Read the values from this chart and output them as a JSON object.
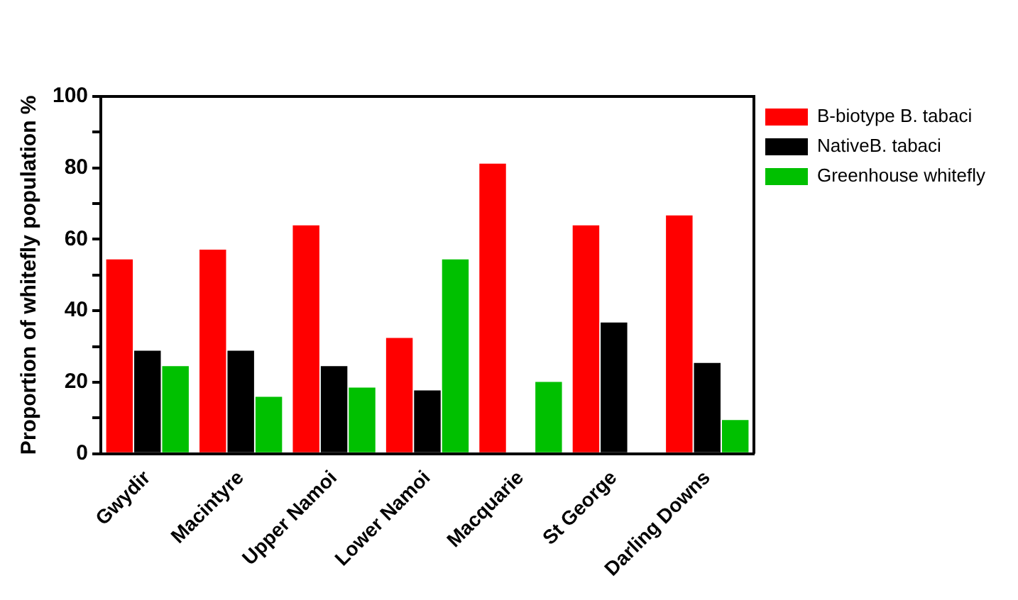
{
  "chart_data": {
    "type": "bar",
    "ylabel": "Proportion of whitefly population %",
    "categories": [
      "Gwydir",
      "Macintyre",
      "Upper Namoi",
      "Lower Namoi",
      "Macquarie",
      "St George",
      "Darling Downs"
    ],
    "series": [
      {
        "name": "B-biotype B. tabaci",
        "color": "#ff0000",
        "values": [
          54.4,
          57.1,
          63.9,
          32.4,
          81.2,
          63.9,
          66.7
        ]
      },
      {
        "name": "NativeB. tabaci",
        "color": "#000000",
        "values": [
          28.8,
          28.8,
          24.5,
          17.7,
          0,
          36.7,
          25.4
        ]
      },
      {
        "name": "Greenhouse whitefly",
        "color": "#00c000",
        "values": [
          24.5,
          15.9,
          18.5,
          54.4,
          20.1,
          0,
          9.4
        ]
      }
    ],
    "ylim": [
      0,
      100
    ],
    "yticks": [
      0,
      {
        "value": 10,
        "label": null
      },
      20,
      {
        "value": 30,
        "label": null
      },
      40,
      {
        "value": 50,
        "label": null
      },
      60,
      {
        "value": 70,
        "label": null
      },
      80,
      {
        "value": 90,
        "label": null
      },
      100
    ],
    "grid": false,
    "legend": "right"
  }
}
